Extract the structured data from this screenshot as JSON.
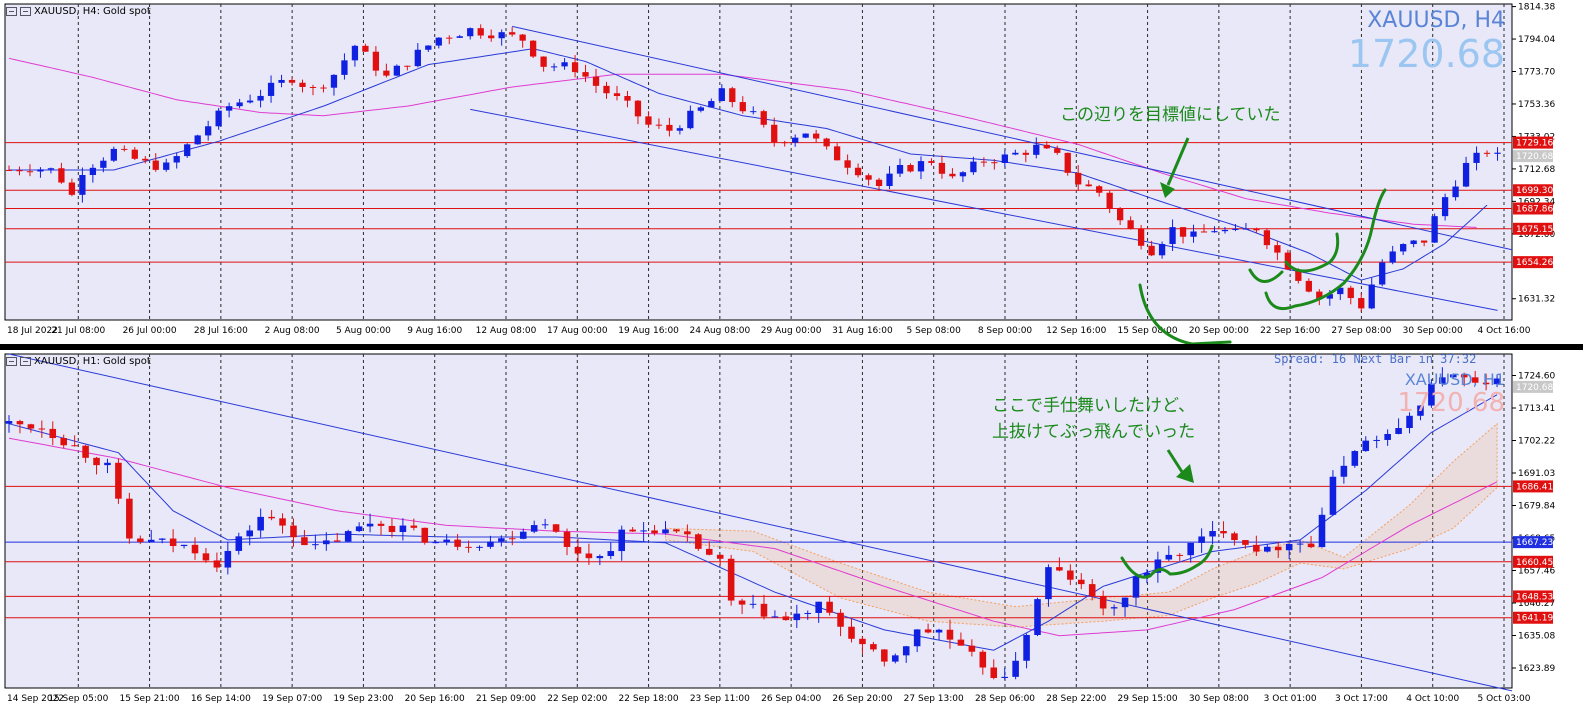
{
  "colors": {
    "bg": "#e8e8f8",
    "grid": "#2a2a2a",
    "bull": "#1020e0",
    "bear": "#e01010",
    "ma_fast": "#2a3ad8",
    "ma_slow": "#e03cd0",
    "hline": "#e01010",
    "hline_blue": "#2030e0",
    "annotation": "#1b8a1b",
    "ichimoku": "#f5a060",
    "tag_red_bg": "#e01010",
    "tag_blue_bg": "#2030e0"
  },
  "top": {
    "header": {
      "symbol": "XAUUSD, H4:",
      "name": "Gold spot"
    },
    "symbol_big": "XAUUSD, H4",
    "price_big": "1720.68",
    "annotation": "この辺りを目標値にしていた",
    "price_axis_labels": [
      "1814.38",
      "1794.04",
      "1773.70",
      "1753.36",
      "1733.02",
      "1712.68",
      "1692.34",
      "1672.00",
      "1631.32"
    ],
    "price_tags": [
      "1729.16",
      "1720.68",
      "1699.30",
      "1687.86",
      "1675.15",
      "1654.26"
    ],
    "time_labels": [
      "18 Jul 2022",
      "21 Jul 08:00",
      "26 Jul 00:00",
      "28 Jul 16:00",
      "2 Aug 08:00",
      "5 Aug 00:00",
      "9 Aug 16:00",
      "12 Aug 08:00",
      "17 Aug 00:00",
      "19 Aug 16:00",
      "24 Aug 08:00",
      "29 Aug 00:00",
      "31 Aug 16:00",
      "5 Sep 08:00",
      "8 Sep 00:00",
      "12 Sep 16:00",
      "15 Sep 08:00",
      "20 Sep 00:00",
      "22 Sep 16:00",
      "27 Sep 08:00",
      "30 Sep 00:00",
      "4 Oct 16:00"
    ]
  },
  "bottom": {
    "header": {
      "symbol": "XAUUSD, H1:",
      "name": "Gold spot"
    },
    "symbol_big": "XAUUSD, H1",
    "price_big": "1720.68",
    "spread_text": "Spread: 16   Next Bar in 37:32",
    "annotation_line1": "ここで手仕舞いしたけど、",
    "annotation_line2": "上抜けてぶっ飛んでいった",
    "price_axis_labels": [
      "1724.60",
      "1713.41",
      "1702.22",
      "1691.03",
      "1679.84",
      "1668.65",
      "1657.46",
      "1646.27",
      "1635.08",
      "1623.89"
    ],
    "price_tags": [
      "1720.68",
      "1686.41",
      "1667.23",
      "1660.45",
      "1648.53",
      "1641.19"
    ],
    "time_labels": [
      "14 Sep 2022",
      "15 Sep 05:00",
      "15 Sep 21:00",
      "16 Sep 14:00",
      "19 Sep 07:00",
      "19 Sep 23:00",
      "20 Sep 16:00",
      "21 Sep 09:00",
      "22 Sep 02:00",
      "22 Sep 18:00",
      "23 Sep 11:00",
      "26 Sep 04:00",
      "26 Sep 20:00",
      "27 Sep 13:00",
      "28 Sep 06:00",
      "28 Sep 22:00",
      "29 Sep 15:00",
      "30 Sep 08:00",
      "3 Oct 01:00",
      "3 Oct 17:00",
      "4 Oct 10:00",
      "5 Oct 03:00"
    ]
  },
  "chart_data": [
    {
      "type": "candlestick",
      "timeframe": "H4",
      "symbol": "XAUUSD",
      "ylim": [
        1618,
        1816
      ],
      "x_categories": [
        "18 Jul 2022",
        "21 Jul 08:00",
        "26 Jul 00:00",
        "28 Jul 16:00",
        "2 Aug 08:00",
        "5 Aug 00:00",
        "9 Aug 16:00",
        "12 Aug 08:00",
        "17 Aug 00:00",
        "19 Aug 16:00",
        "24 Aug 08:00",
        "29 Aug 00:00",
        "31 Aug 16:00",
        "5 Sep 08:00",
        "8 Sep 00:00",
        "12 Sep 16:00",
        "15 Sep 08:00",
        "20 Sep 00:00",
        "22 Sep 16:00",
        "27 Sep 08:00",
        "30 Sep 00:00",
        "4 Oct 16:00"
      ],
      "close_path": [
        [
          0,
          1712
        ],
        [
          2,
          1714
        ],
        [
          4,
          1712
        ],
        [
          5,
          1706
        ],
        [
          6,
          1696
        ],
        [
          7,
          1712
        ],
        [
          10,
          1724
        ],
        [
          13,
          1716
        ],
        [
          15,
          1714
        ],
        [
          16,
          1720
        ],
        [
          18,
          1734
        ],
        [
          21,
          1752
        ],
        [
          24,
          1760
        ],
        [
          27,
          1770
        ],
        [
          29,
          1762
        ],
        [
          31,
          1772
        ],
        [
          33,
          1790
        ],
        [
          36,
          1770
        ],
        [
          38,
          1780
        ],
        [
          41,
          1795
        ],
        [
          44,
          1800
        ],
        [
          46,
          1798
        ],
        [
          49,
          1794
        ],
        [
          51,
          1778
        ],
        [
          54,
          1776
        ],
        [
          56,
          1765
        ],
        [
          59,
          1752
        ],
        [
          61,
          1740
        ],
        [
          63,
          1737
        ],
        [
          66,
          1750
        ],
        [
          68,
          1760
        ],
        [
          71,
          1746
        ],
        [
          73,
          1730
        ],
        [
          76,
          1736
        ],
        [
          78,
          1724
        ],
        [
          81,
          1712
        ],
        [
          83,
          1702
        ],
        [
          85,
          1712
        ],
        [
          88,
          1718
        ],
        [
          90,
          1706
        ],
        [
          93,
          1718
        ],
        [
          95,
          1720
        ],
        [
          98,
          1726
        ],
        [
          100,
          1720
        ],
        [
          102,
          1704
        ],
        [
          104,
          1698
        ],
        [
          106,
          1680
        ],
        [
          109,
          1662
        ],
        [
          111,
          1675
        ],
        [
          113,
          1670
        ],
        [
          115,
          1675
        ],
        [
          117,
          1672
        ],
        [
          119,
          1676
        ],
        [
          121,
          1660
        ],
        [
          123,
          1645
        ],
        [
          125,
          1632
        ],
        [
          127,
          1637
        ],
        [
          129,
          1627
        ],
        [
          131,
          1654
        ],
        [
          133,
          1664
        ],
        [
          135,
          1668
        ],
        [
          137,
          1695
        ],
        [
          139,
          1715
        ],
        [
          141,
          1724
        ],
        [
          142,
          1720
        ]
      ],
      "ma_fast": [
        [
          0,
          1712
        ],
        [
          10,
          1712
        ],
        [
          20,
          1730
        ],
        [
          30,
          1752
        ],
        [
          40,
          1778
        ],
        [
          50,
          1788
        ],
        [
          55,
          1780
        ],
        [
          62,
          1760
        ],
        [
          70,
          1746
        ],
        [
          78,
          1738
        ],
        [
          86,
          1722
        ],
        [
          94,
          1718
        ],
        [
          102,
          1710
        ],
        [
          110,
          1692
        ],
        [
          118,
          1675
        ],
        [
          124,
          1660
        ],
        [
          129,
          1643
        ],
        [
          133,
          1650
        ],
        [
          137,
          1666
        ],
        [
          141,
          1690
        ]
      ],
      "ma_slow": [
        [
          0,
          1782
        ],
        [
          8,
          1770
        ],
        [
          16,
          1756
        ],
        [
          24,
          1748
        ],
        [
          30,
          1746
        ],
        [
          38,
          1752
        ],
        [
          48,
          1764
        ],
        [
          58,
          1772
        ],
        [
          68,
          1772
        ],
        [
          80,
          1762
        ],
        [
          92,
          1744
        ],
        [
          102,
          1728
        ],
        [
          110,
          1710
        ],
        [
          118,
          1694
        ],
        [
          126,
          1685
        ],
        [
          134,
          1678
        ],
        [
          140,
          1676
        ]
      ],
      "channel_upper": [
        [
          48,
          1802
        ],
        [
          160,
          1662
        ]
      ],
      "channel_lower": [
        [
          44,
          1750
        ],
        [
          142,
          1624
        ]
      ],
      "horizontal_levels": [
        1729.16,
        1699.3,
        1687.86,
        1675.15,
        1654.26
      ],
      "current_price": 1720.68,
      "annotation_text": "この辺りを目標値にしていた"
    },
    {
      "type": "candlestick",
      "timeframe": "H1",
      "symbol": "XAUUSD",
      "ylim": [
        1617,
        1732
      ],
      "x_categories": [
        "14 Sep 2022",
        "15 Sep 05:00",
        "15 Sep 21:00",
        "16 Sep 14:00",
        "19 Sep 07:00",
        "19 Sep 23:00",
        "20 Sep 16:00",
        "21 Sep 09:00",
        "22 Sep 02:00",
        "22 Sep 18:00",
        "23 Sep 11:00",
        "26 Sep 04:00",
        "26 Sep 20:00",
        "27 Sep 13:00",
        "28 Sep 06:00",
        "28 Sep 22:00",
        "29 Sep 15:00",
        "30 Sep 08:00",
        "3 Oct 01:00",
        "3 Oct 17:00",
        "4 Oct 10:00",
        "5 Oct 03:00"
      ],
      "close_path": [
        [
          0,
          1708
        ],
        [
          3,
          1707
        ],
        [
          6,
          1700
        ],
        [
          9,
          1693
        ],
        [
          11,
          1668
        ],
        [
          14,
          1667
        ],
        [
          17,
          1665
        ],
        [
          19,
          1660
        ],
        [
          21,
          1668
        ],
        [
          23,
          1676
        ],
        [
          25,
          1673
        ],
        [
          28,
          1665
        ],
        [
          31,
          1670
        ],
        [
          33,
          1674
        ],
        [
          36,
          1672
        ],
        [
          39,
          1667
        ],
        [
          42,
          1667
        ],
        [
          45,
          1668
        ],
        [
          47,
          1672
        ],
        [
          49,
          1675
        ],
        [
          51,
          1665
        ],
        [
          54,
          1662
        ],
        [
          56,
          1670
        ],
        [
          59,
          1672
        ],
        [
          62,
          1668
        ],
        [
          65,
          1660
        ],
        [
          66,
          1646
        ],
        [
          69,
          1643
        ],
        [
          71,
          1640
        ],
        [
          74,
          1645
        ],
        [
          77,
          1635
        ],
        [
          80,
          1625
        ],
        [
          83,
          1636
        ],
        [
          85,
          1637
        ],
        [
          87,
          1630
        ],
        [
          89,
          1625
        ],
        [
          91,
          1619
        ],
        [
          93,
          1636
        ],
        [
          95,
          1658
        ],
        [
          97,
          1655
        ],
        [
          99,
          1648
        ],
        [
          101,
          1643
        ],
        [
          103,
          1655
        ],
        [
          106,
          1662
        ],
        [
          109,
          1668
        ],
        [
          111,
          1672
        ],
        [
          113,
          1667
        ],
        [
          115,
          1664
        ],
        [
          117,
          1668
        ],
        [
          119,
          1666
        ],
        [
          121,
          1688
        ],
        [
          123,
          1700
        ],
        [
          125,
          1703
        ],
        [
          127,
          1705
        ],
        [
          129,
          1716
        ],
        [
          131,
          1725
        ],
        [
          133,
          1723
        ],
        [
          135,
          1720
        ],
        [
          136,
          1722
        ]
      ],
      "ma_fast": [
        [
          0,
          1708
        ],
        [
          10,
          1698
        ],
        [
          15,
          1678
        ],
        [
          20,
          1668
        ],
        [
          30,
          1670
        ],
        [
          40,
          1669
        ],
        [
          50,
          1669
        ],
        [
          60,
          1667
        ],
        [
          70,
          1650
        ],
        [
          80,
          1637
        ],
        [
          90,
          1630
        ],
        [
          95,
          1640
        ],
        [
          100,
          1652
        ],
        [
          110,
          1664
        ],
        [
          118,
          1668
        ],
        [
          124,
          1685
        ],
        [
          130,
          1705
        ],
        [
          136,
          1718
        ]
      ],
      "ma_slow": [
        [
          0,
          1703
        ],
        [
          10,
          1696
        ],
        [
          20,
          1686
        ],
        [
          30,
          1678
        ],
        [
          40,
          1673
        ],
        [
          50,
          1671
        ],
        [
          60,
          1670
        ],
        [
          70,
          1665
        ],
        [
          80,
          1652
        ],
        [
          90,
          1640
        ],
        [
          96,
          1635
        ],
        [
          104,
          1637
        ],
        [
          112,
          1644
        ],
        [
          120,
          1655
        ],
        [
          128,
          1673
        ],
        [
          136,
          1688
        ]
      ],
      "channel_upper": [
        [
          0,
          1732
        ],
        [
          138,
          1616
        ]
      ],
      "horizontal_levels": [
        1686.41,
        1667.23,
        1660.45,
        1648.53,
        1641.19
      ],
      "current_price": 1720.68,
      "annotation_text": [
        "ここで手仕舞いしたけど、",
        "上抜けてぶっ飛んでいった"
      ]
    }
  ]
}
